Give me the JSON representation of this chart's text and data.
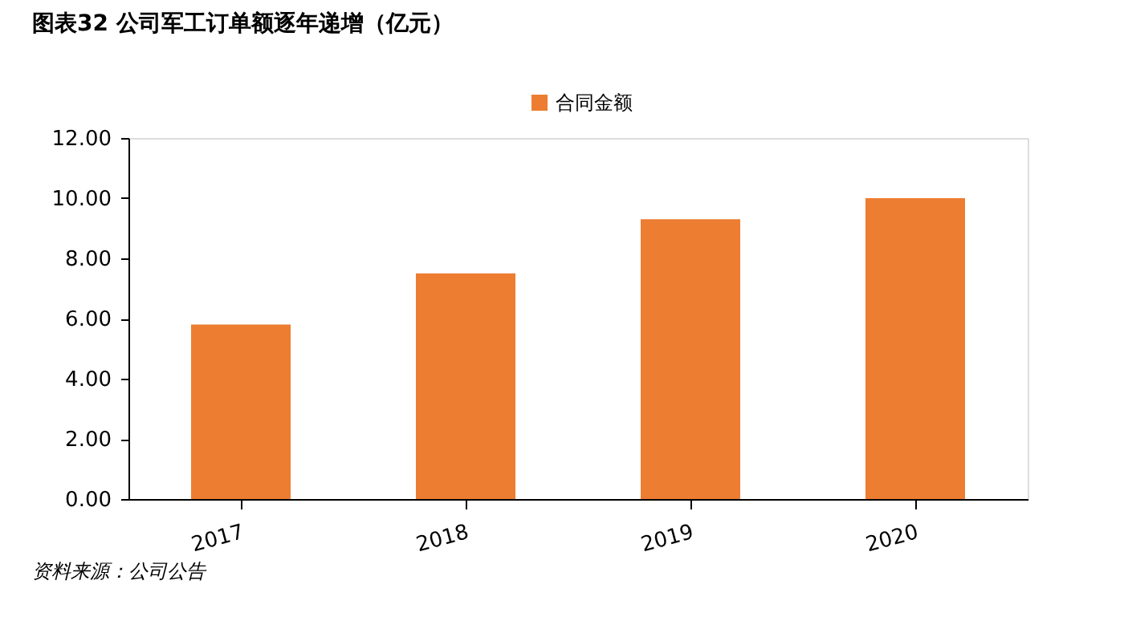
{
  "chart_data": {
    "type": "bar",
    "title": "图表32   公司军工订单额逐年递增（亿元）",
    "categories": [
      "2017",
      "2018",
      "2019",
      "2020"
    ],
    "series": [
      {
        "name": "合同金额",
        "color": "#ed7d31",
        "values": [
          5.8,
          7.5,
          9.3,
          10.0
        ]
      }
    ],
    "ylim": [
      0,
      12
    ],
    "yticks": [
      {
        "value": 0,
        "label": "0.00"
      },
      {
        "value": 2,
        "label": "2.00"
      },
      {
        "value": 4,
        "label": "4.00"
      },
      {
        "value": 6,
        "label": "6.00"
      },
      {
        "value": 8,
        "label": "8.00"
      },
      {
        "value": 10,
        "label": "10.00"
      },
      {
        "value": 12,
        "label": "12.00"
      }
    ],
    "grid": false,
    "legend": "top",
    "annotations": [
      "资料来源：公司公告"
    ]
  }
}
